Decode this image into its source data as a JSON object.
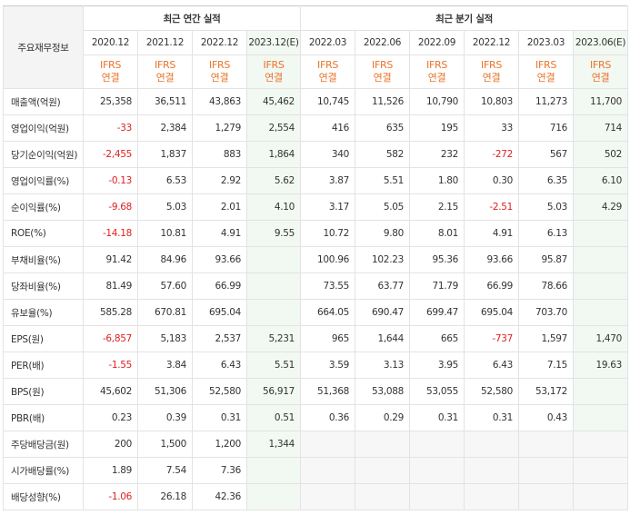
{
  "header": {
    "corner_label": "주요재무정보",
    "annual_group": "최근 연간 실적",
    "quarter_group": "최근 분기 실적",
    "annual_periods": [
      "2020.12",
      "2021.12",
      "2022.12",
      "2023.12(E)"
    ],
    "quarter_periods": [
      "2022.03",
      "2022.06",
      "2022.09",
      "2022.12",
      "2023.03",
      "2023.06(E)"
    ],
    "ifrs_line1": "IFRS",
    "ifrs_line2": "연결"
  },
  "rows": [
    {
      "label": "매출액(억원)",
      "values": [
        "25,358",
        "36,511",
        "43,863",
        "45,462",
        "10,745",
        "11,526",
        "10,790",
        "10,803",
        "11,273",
        "11,700"
      ]
    },
    {
      "label": "영업이익(억원)",
      "values": [
        "-33",
        "2,384",
        "1,279",
        "2,554",
        "416",
        "635",
        "195",
        "33",
        "716",
        "714"
      ]
    },
    {
      "label": "당기순이익(억원)",
      "values": [
        "-2,455",
        "1,837",
        "883",
        "1,864",
        "340",
        "582",
        "232",
        "-272",
        "567",
        "502"
      ]
    },
    {
      "label": "영업이익률(%)",
      "values": [
        "-0.13",
        "6.53",
        "2.92",
        "5.62",
        "3.87",
        "5.51",
        "1.80",
        "0.30",
        "6.35",
        "6.10"
      ]
    },
    {
      "label": "순이익률(%)",
      "values": [
        "-9.68",
        "5.03",
        "2.01",
        "4.10",
        "3.17",
        "5.05",
        "2.15",
        "-2.51",
        "5.03",
        "4.29"
      ]
    },
    {
      "label": "ROE(%)",
      "values": [
        "-14.18",
        "10.81",
        "4.91",
        "9.55",
        "10.72",
        "9.80",
        "8.01",
        "4.91",
        "6.13",
        ""
      ]
    },
    {
      "label": "부채비율(%)",
      "values": [
        "91.42",
        "84.96",
        "93.66",
        "",
        "100.96",
        "102.23",
        "95.36",
        "93.66",
        "95.87",
        ""
      ]
    },
    {
      "label": "당좌비율(%)",
      "values": [
        "81.49",
        "57.60",
        "66.99",
        "",
        "73.55",
        "63.77",
        "71.79",
        "66.99",
        "78.66",
        ""
      ]
    },
    {
      "label": "유보율(%)",
      "values": [
        "585.28",
        "670.81",
        "695.04",
        "",
        "664.05",
        "690.47",
        "699.47",
        "695.04",
        "703.70",
        ""
      ]
    },
    {
      "label": "EPS(원)",
      "values": [
        "-6,857",
        "5,183",
        "2,537",
        "5,231",
        "965",
        "1,644",
        "665",
        "-737",
        "1,597",
        "1,470"
      ]
    },
    {
      "label": "PER(배)",
      "values": [
        "-1.55",
        "3.84",
        "6.43",
        "5.51",
        "3.59",
        "3.13",
        "3.95",
        "6.43",
        "7.15",
        "19.63"
      ]
    },
    {
      "label": "BPS(원)",
      "values": [
        "45,602",
        "51,306",
        "52,580",
        "56,917",
        "51,368",
        "53,088",
        "53,055",
        "52,580",
        "53,172",
        ""
      ]
    },
    {
      "label": "PBR(배)",
      "values": [
        "0.23",
        "0.39",
        "0.31",
        "0.51",
        "0.36",
        "0.29",
        "0.31",
        "0.31",
        "0.43",
        ""
      ]
    },
    {
      "label": "주당배당금(원)",
      "values": [
        "200",
        "1,500",
        "1,200",
        "1,344",
        "",
        "",
        "",
        "",
        "",
        ""
      ]
    },
    {
      "label": "시가배당률(%)",
      "values": [
        "1.89",
        "7.54",
        "7.36",
        "",
        "",
        "",
        "",
        "",
        "",
        ""
      ]
    },
    {
      "label": "배당성향(%)",
      "values": [
        "-1.06",
        "26.18",
        "42.36",
        "",
        "",
        "",
        "",
        "",
        "",
        ""
      ]
    }
  ],
  "colors": {
    "negative": "#e02020",
    "ifrs": "#e8742a",
    "estimate_bg": "#f2f8f2"
  }
}
